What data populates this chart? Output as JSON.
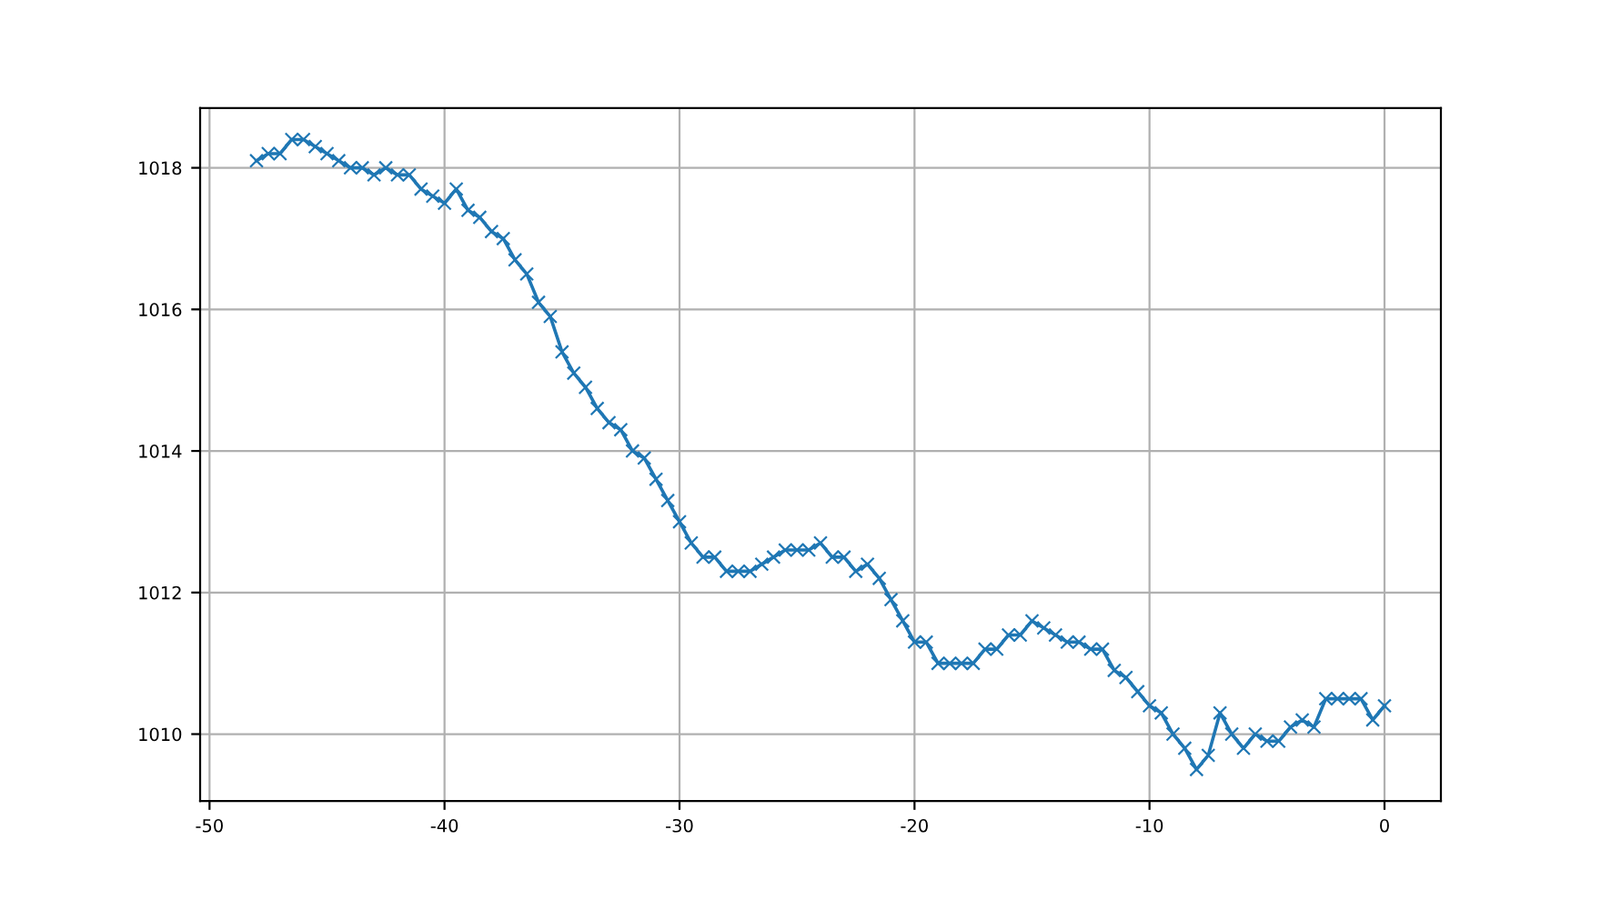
{
  "chart_data": {
    "type": "line",
    "x": [
      -48,
      -47.5,
      -47,
      -46.5,
      -46,
      -45.5,
      -45,
      -44.5,
      -44,
      -43.5,
      -43,
      -42.5,
      -42,
      -41.5,
      -41,
      -40.5,
      -40,
      -39.5,
      -39,
      -38.5,
      -38,
      -37.5,
      -37,
      -36.5,
      -36,
      -35.5,
      -35,
      -34.5,
      -34,
      -33.5,
      -33,
      -32.5,
      -32,
      -31.5,
      -31,
      -30.5,
      -30,
      -29.5,
      -29,
      -28.5,
      -28,
      -27.5,
      -27,
      -26.5,
      -26,
      -25.5,
      -25,
      -24.5,
      -24,
      -23.5,
      -23,
      -22.5,
      -22,
      -21.5,
      -21,
      -20.5,
      -20,
      -19.5,
      -19,
      -18.5,
      -18,
      -17.5,
      -17,
      -16.5,
      -16,
      -15.5,
      -15,
      -14.5,
      -14,
      -13.5,
      -13,
      -12.5,
      -12,
      -11.5,
      -11,
      -10.5,
      -10,
      -9.5,
      -9,
      -8.5,
      -8,
      -7.5,
      -7,
      -6.5,
      -6,
      -5.5,
      -5,
      -4.5,
      -4,
      -3.5,
      -3,
      -2.5,
      -2,
      -1.5,
      -1,
      -0.5,
      0
    ],
    "series": [
      {
        "color": "#1f77b4",
        "values": [
          1018.1,
          1018.2,
          1018.2,
          1018.4,
          1018.4,
          1018.3,
          1018.2,
          1018.1,
          1018.0,
          1018.0,
          1017.9,
          1018.0,
          1017.9,
          1017.9,
          1017.7,
          1017.6,
          1017.5,
          1017.7,
          1017.4,
          1017.3,
          1017.1,
          1017.0,
          1016.7,
          1016.5,
          1016.1,
          1015.9,
          1015.4,
          1015.1,
          1014.9,
          1014.6,
          1014.4,
          1014.3,
          1014.0,
          1013.9,
          1013.6,
          1013.3,
          1013.0,
          1012.7,
          1012.5,
          1012.5,
          1012.3,
          1012.3,
          1012.3,
          1012.4,
          1012.5,
          1012.6,
          1012.6,
          1012.6,
          1012.7,
          1012.5,
          1012.5,
          1012.3,
          1012.4,
          1012.2,
          1011.9,
          1011.6,
          1011.3,
          1011.3,
          1011.0,
          1011.0,
          1011.0,
          1011.0,
          1011.2,
          1011.2,
          1011.4,
          1011.4,
          1011.6,
          1011.5,
          1011.4,
          1011.3,
          1011.3,
          1011.2,
          1011.2,
          1010.9,
          1010.8,
          1010.6,
          1010.4,
          1010.3,
          1010.0,
          1009.8,
          1009.5,
          1009.7,
          1010.3,
          1010.0,
          1009.8,
          1010.0,
          1009.9,
          1009.9,
          1010.1,
          1010.2,
          1010.1,
          1010.5,
          1010.5,
          1010.5,
          1010.5,
          1010.2,
          1010.4
        ]
      }
    ],
    "xlim": [
      -50.4,
      2.4
    ],
    "ylim": [
      1009.055,
      1018.845
    ],
    "xticks": [
      -50,
      -40,
      -30,
      -20,
      -10,
      0
    ],
    "yticks": [
      1010,
      1012,
      1014,
      1016,
      1018
    ],
    "grid": true,
    "marker": "cross",
    "line_style": "solid",
    "legend": false
  }
}
